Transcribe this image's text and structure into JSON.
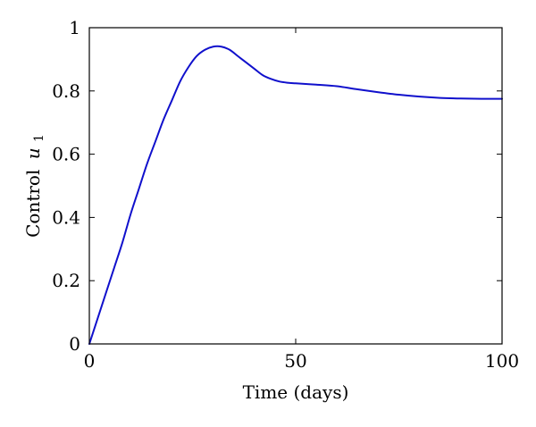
{
  "chart_data": {
    "type": "line",
    "title": "",
    "xlabel": "Time (days)",
    "ylabel": {
      "text": "Control",
      "symbol": "u",
      "subscript": "1"
    },
    "xlim": [
      0,
      100
    ],
    "ylim": [
      0,
      1
    ],
    "xticks": [
      0,
      50,
      100
    ],
    "xtick_labels": [
      "0",
      "50",
      "100"
    ],
    "yticks": [
      0,
      0.2,
      0.4,
      0.6,
      0.8,
      1
    ],
    "ytick_labels": [
      "0",
      "0.2",
      "0.4",
      "0.6",
      "0.8",
      "1"
    ],
    "grid": false,
    "legend": "none",
    "line_color": "#1010cc",
    "series": [
      {
        "x": [
          0,
          2,
          4,
          6,
          8,
          10,
          12,
          14,
          16,
          18,
          20,
          22,
          24,
          26,
          28,
          30,
          32,
          34,
          36,
          38,
          40,
          42,
          44,
          46,
          48,
          50,
          55,
          60,
          65,
          70,
          75,
          80,
          85,
          90,
          95,
          100
        ],
        "y": [
          0,
          0.08,
          0.16,
          0.24,
          0.32,
          0.41,
          0.49,
          0.57,
          0.64,
          0.71,
          0.77,
          0.83,
          0.875,
          0.91,
          0.93,
          0.94,
          0.94,
          0.93,
          0.91,
          0.89,
          0.87,
          0.85,
          0.838,
          0.83,
          0.826,
          0.824,
          0.82,
          0.815,
          0.805,
          0.796,
          0.788,
          0.782,
          0.778,
          0.776,
          0.775,
          0.775
        ]
      }
    ]
  }
}
